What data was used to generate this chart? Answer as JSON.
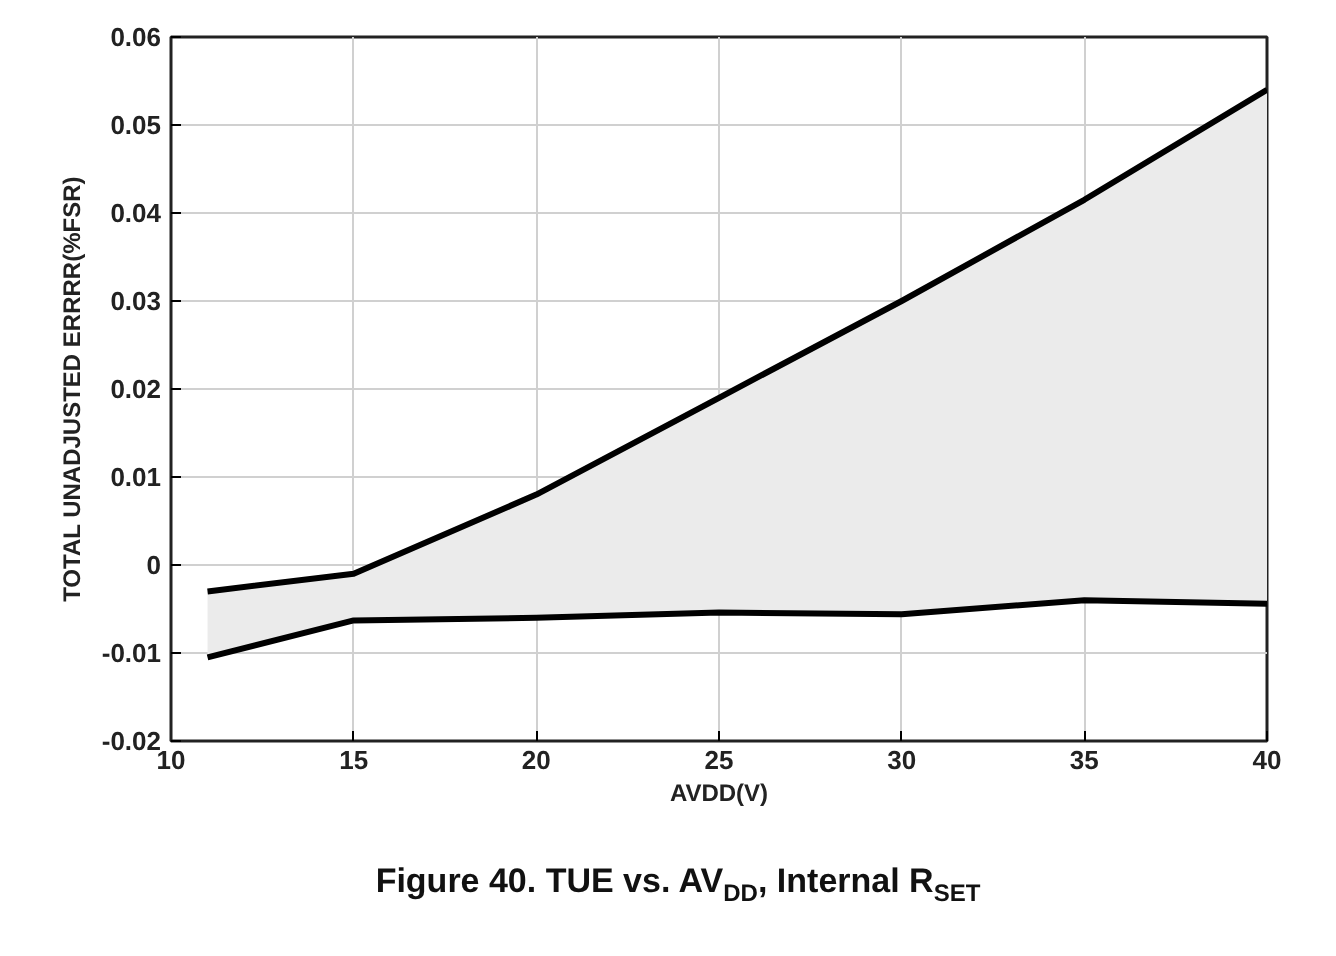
{
  "chart_data": {
    "type": "line",
    "title": "Figure 40. TUE vs. AV$_{DD}$, Internal R$_{SET}$",
    "xlabel": "AVDD(V)",
    "ylabel": "TOTAL UNADJUSTED ERRRR(%FSR)",
    "x": [
      11,
      15,
      20,
      25,
      30,
      35,
      40
    ],
    "series": [
      {
        "color": "#000000",
        "values": [
          -0.003,
          -0.001,
          0.008,
          0.019,
          0.03,
          0.0415,
          0.054
        ],
        "lower": [
          -0.0105,
          -0.0063,
          -0.006,
          -0.0054,
          -0.0056,
          -0.004,
          -0.0044
        ],
        "upper": [
          -0.003,
          -0.001,
          0.008,
          0.019,
          0.03,
          0.0415,
          0.054
        ]
      },
      {
        "color": "#000000",
        "values": [
          -0.0105,
          -0.0063,
          -0.006,
          -0.0054,
          -0.0056,
          -0.004,
          -0.0044
        ]
      }
    ],
    "xlim": [
      10,
      40
    ],
    "ylim": [
      -0.02,
      0.06
    ],
    "xticks": [
      10,
      15,
      20,
      25,
      30,
      35,
      40
    ],
    "yticks": [
      -0.02,
      -0.01,
      0,
      0.01,
      0.02,
      0.03,
      0.04,
      0.05,
      0.06
    ],
    "grid": true,
    "line_style": "solid"
  }
}
